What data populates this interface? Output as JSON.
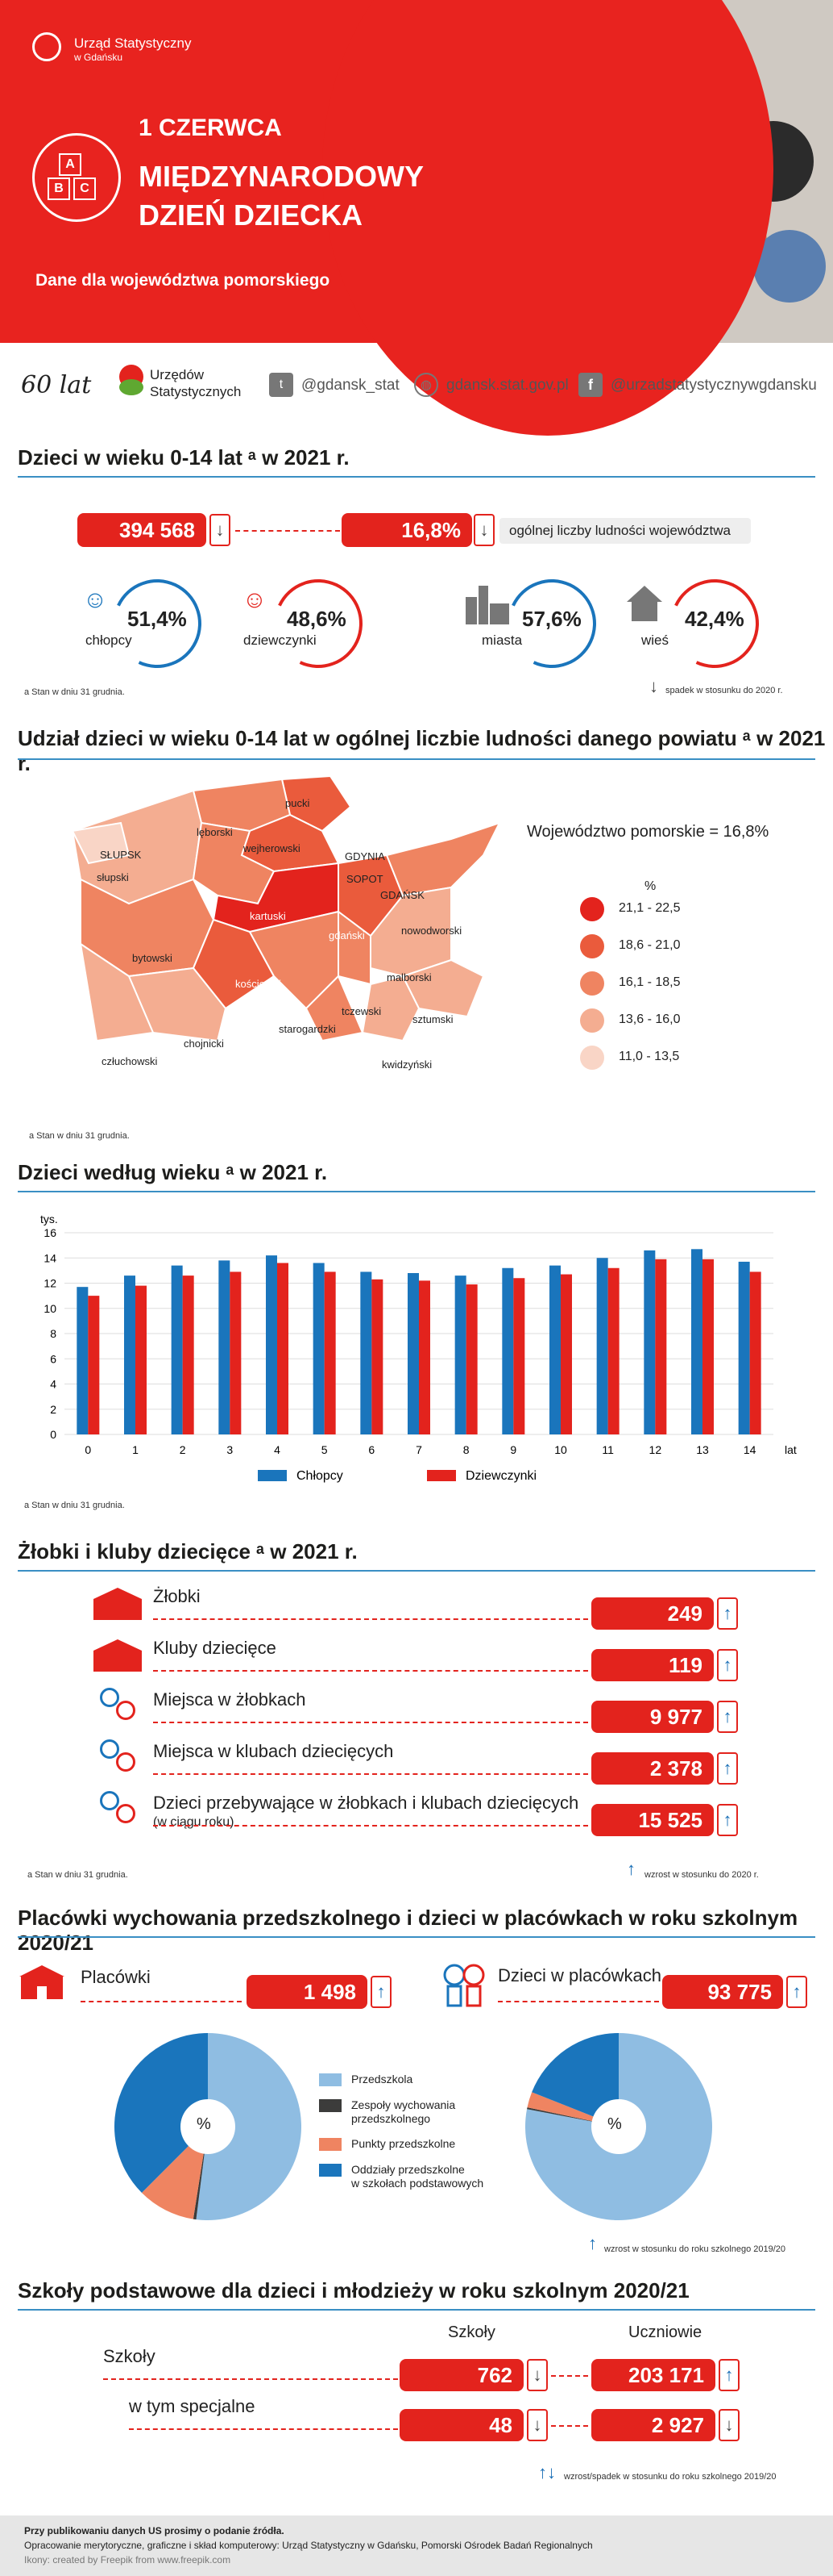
{
  "header": {
    "org": "Urząd Statystyczny",
    "org_sub": "w Gdańsku",
    "date": "1 CZERWCA",
    "title1": "MIĘDZYNARODOWY",
    "title2": "DZIEŃ DZIECKA",
    "subtitle": "Dane dla województwa pomorskiego",
    "blocks_letters": [
      "A",
      "B",
      "C"
    ]
  },
  "social": {
    "anniversary": "60 lat",
    "offices1": "Urzędów",
    "offices2": "Statystycznych",
    "twitter": "@gdansk_stat",
    "web": "gdansk.stat.gov.pl",
    "facebook": "@urzadstatystycznywgdansku"
  },
  "sec1": {
    "title": "Dzieci w wieku 0-14 lat ᵃ w 2021 r.",
    "total": "394 568",
    "share": "16,8%",
    "share_label": "ogólnej liczby ludności województwa",
    "boys_pct": "51,4%",
    "boys_lbl": "chłopcy",
    "girls_pct": "48,6%",
    "girls_lbl": "dziewczynki",
    "city_pct": "57,6%",
    "city_lbl": "miasta",
    "village_pct": "42,4%",
    "village_lbl": "wieś",
    "note": "a Stan w dniu 31 grudnia.",
    "legend": "spadek w stosunku do 2020 r.",
    "arrow": "↓"
  },
  "sec2": {
    "title": "Udział dzieci w wieku 0-14 lat w ogólnej liczbie ludności danego powiatu ᵃ w 2021 r.",
    "region": "Województwo pomorskie = 16,8%",
    "pct": "%",
    "legend": [
      {
        "label": "21,1 - 22,5",
        "color": "#e3231d"
      },
      {
        "label": "18,6 - 21,0",
        "color": "#ea5b3c"
      },
      {
        "label": "16,1 - 18,5",
        "color": "#ef8461"
      },
      {
        "label": "13,6 - 16,0",
        "color": "#f4ad91"
      },
      {
        "label": "11,0 - 13,5",
        "color": "#f9d5c6"
      }
    ],
    "districts": [
      "pucki",
      "lęborski",
      "SŁUPSK",
      "słupski",
      "wejherowski",
      "GDYNIA",
      "SOPOT",
      "GDAŃSK",
      "kartuski",
      "gdański",
      "nowodworski",
      "bytowski",
      "kościerski",
      "malborski",
      "tczewski",
      "starogardzki",
      "sztumski",
      "chojnicki",
      "człuchowski",
      "kwidzyński"
    ],
    "note": "a Stan w dniu 31 grudnia."
  },
  "sec3": {
    "title": "Dzieci według wieku ᵃ w 2021 r.",
    "note": "a Stan w dniu 31 grudnia."
  },
  "chart_data": {
    "type": "bar",
    "categories": [
      "0",
      "1",
      "2",
      "3",
      "4",
      "5",
      "6",
      "7",
      "8",
      "9",
      "10",
      "11",
      "12",
      "13",
      "14"
    ],
    "series": [
      {
        "name": "Chłopcy",
        "color": "#1a75bc",
        "values": [
          11.7,
          12.6,
          13.4,
          13.8,
          14.2,
          13.6,
          12.9,
          12.8,
          12.6,
          13.2,
          13.4,
          14.0,
          14.6,
          14.7,
          13.7
        ]
      },
      {
        "name": "Dziewczynki",
        "color": "#e3231d",
        "values": [
          11.0,
          11.8,
          12.6,
          12.9,
          13.6,
          12.9,
          12.3,
          12.2,
          11.9,
          12.4,
          12.7,
          13.2,
          13.9,
          13.9,
          12.9
        ]
      }
    ],
    "ylabel": "tys.",
    "xlabel": "lat",
    "ylim": [
      0,
      16
    ],
    "yticks": [
      "0",
      "2",
      "4",
      "6",
      "8",
      "10",
      "12",
      "14",
      "16"
    ],
    "grid": true,
    "legend": "bottom"
  },
  "sec4": {
    "title": "Żłobki i kluby dziecięce ᵃ w 2021 r.",
    "rows": [
      {
        "label": "Żłobki",
        "value": "249"
      },
      {
        "label": "Kluby dziecięce",
        "value": "119"
      },
      {
        "label": "Miejsca w żłobkach",
        "value": "9 977"
      },
      {
        "label": "Miejsca w klubach dziecięcych",
        "value": "2 378"
      },
      {
        "label": "Dzieci przebywające w żłobkach i klubach dziecięcych",
        "label2": "(w ciągu roku)",
        "value": "15 525"
      }
    ],
    "arrow": "↑",
    "note": "a Stan w dniu 31 grudnia.",
    "legend": "wzrost w stosunku do 2020 r."
  },
  "sec5": {
    "title": "Placówki wychowania przedszkolnego i dzieci w placówkach w roku szkolnym 2020/21",
    "left_lbl": "Placówki",
    "left_val": "1 498",
    "right_lbl": "Dzieci w placówkach",
    "right_val": "93 775",
    "arrow": "↑",
    "pct": "%",
    "legend": [
      {
        "label": "Przedszkola",
        "color": "#8fbde2"
      },
      {
        "label": "Zespoły wychowania",
        "label2": "przedszkolnego",
        "color": "#3c3c3b"
      },
      {
        "label": "Punkty przedszkolne",
        "color": "#ef8461"
      },
      {
        "label": "Oddziały przedszkolne",
        "label2": "w szkołach podstawowych",
        "color": "#1a75bc"
      }
    ],
    "pie_left": [
      52,
      0.5,
      10,
      37.5
    ],
    "pie_right": [
      78,
      0.3,
      2.7,
      19
    ],
    "note": "wzrost w stosunku do roku szkolnego 2019/20"
  },
  "sec6": {
    "title": "Szkoły podstawowe dla dzieci i młodzieży w roku szkolnym 2020/21",
    "col1": "Szkoły",
    "col2": "Uczniowie",
    "rows": [
      {
        "label": "Szkoły",
        "v1": "762",
        "a1": "↓",
        "v2": "203 171",
        "a2": "↑"
      },
      {
        "label": "w tym specjalne",
        "v1": "48",
        "a1": "↓",
        "v2": "2 927",
        "a2": "↓"
      }
    ],
    "legend_arrows": "↑↓",
    "legend": "wzrost/spadek w stosunku do roku szkolnego 2019/20"
  },
  "footer": {
    "line1": "Przy publikowaniu danych US prosimy o podanie źródła.",
    "line2": "Opracowanie merytoryczne, graficzne i skład komputerowy: Urząd Statystyczny w Gdańsku, Pomorski Ośrodek Badań Regionalnych",
    "line3": "Ikony: created by Freepik from www.freepik.com"
  }
}
